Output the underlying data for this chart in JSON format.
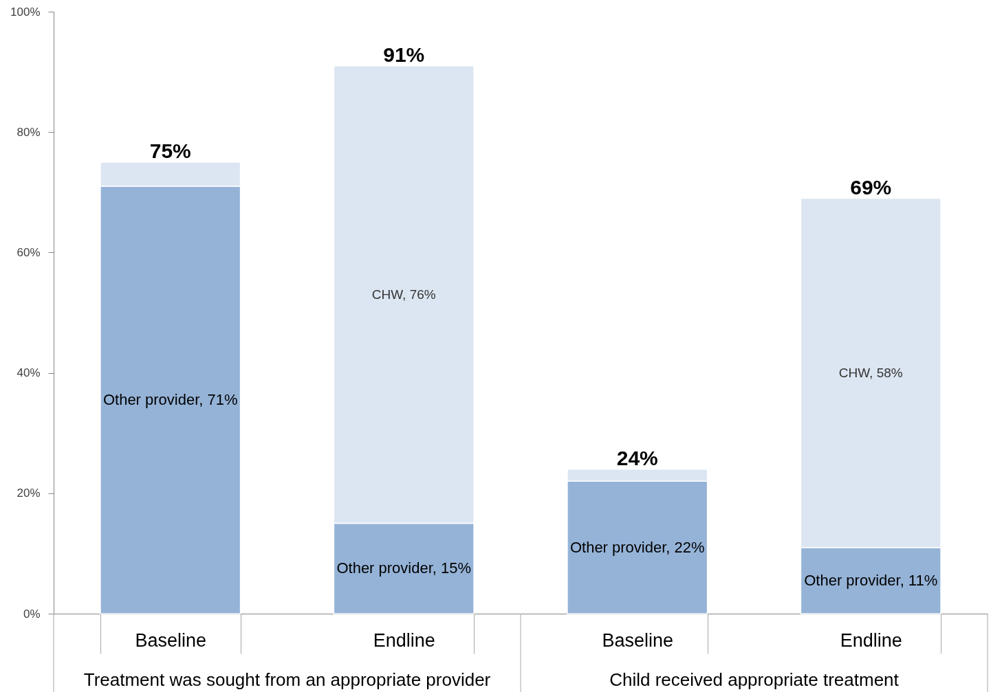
{
  "chart_data": {
    "type": "bar",
    "stacked": true,
    "categories": [
      "Baseline",
      "Endline",
      "Baseline",
      "Endline"
    ],
    "series": [
      {
        "color": "#95b3d7",
        "values": [
          71,
          15,
          22,
          11
        ],
        "value_labels": [
          "Other provider, 71%",
          "Other provider, 15%",
          "Other provider, 22%",
          "Other provider, 11%"
        ]
      },
      {
        "color": "#dce6f2",
        "values": [
          4,
          76,
          2,
          58
        ],
        "value_labels": [
          null,
          "CHW, 76%",
          null,
          "CHW, 58%"
        ]
      }
    ],
    "totals": [
      "75%",
      "91%",
      "24%",
      "69%"
    ],
    "ylim": [
      0,
      100
    ],
    "yticks": [
      {
        "value": 0,
        "label": "0%"
      },
      {
        "value": 20,
        "label": "20%"
      },
      {
        "value": 40,
        "label": "40%"
      },
      {
        "value": 60,
        "label": "60%"
      },
      {
        "value": 80,
        "label": "80%"
      },
      {
        "value": 100,
        "label": "100%"
      }
    ],
    "annotations": [
      "Treatment was sought from an appropriate provider",
      "Child received appropriate treatment"
    ],
    "grid": false
  }
}
